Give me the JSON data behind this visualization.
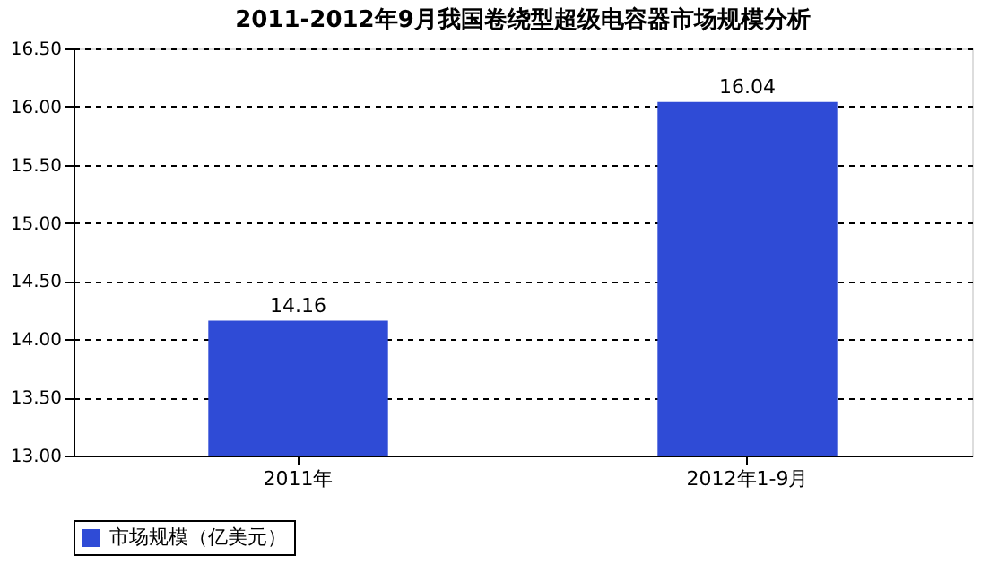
{
  "chart_data": {
    "type": "bar",
    "title": "2011-2012年9月我国卷绕型超级电容器市场规模分析",
    "categories": [
      "2011年",
      "2012年1-9月"
    ],
    "series": [
      {
        "name": "市场规模（亿美元）",
        "color": "#2f4bd6",
        "values": [
          14.16,
          16.04
        ]
      }
    ],
    "ylim": [
      13,
      16.5
    ],
    "yticks": [
      {
        "value": 13,
        "label": "13.00"
      },
      {
        "value": 13.5,
        "label": "13.50"
      },
      {
        "value": 14,
        "label": "14.00"
      },
      {
        "value": 14.5,
        "label": "14.50"
      },
      {
        "value": 15,
        "label": "15.00"
      },
      {
        "value": 15.5,
        "label": "15.50"
      },
      {
        "value": 16,
        "label": "16.00"
      },
      {
        "value": 16.5,
        "label": "16.50"
      }
    ],
    "grid": "y",
    "legend": "bottom",
    "data_labels": true
  }
}
